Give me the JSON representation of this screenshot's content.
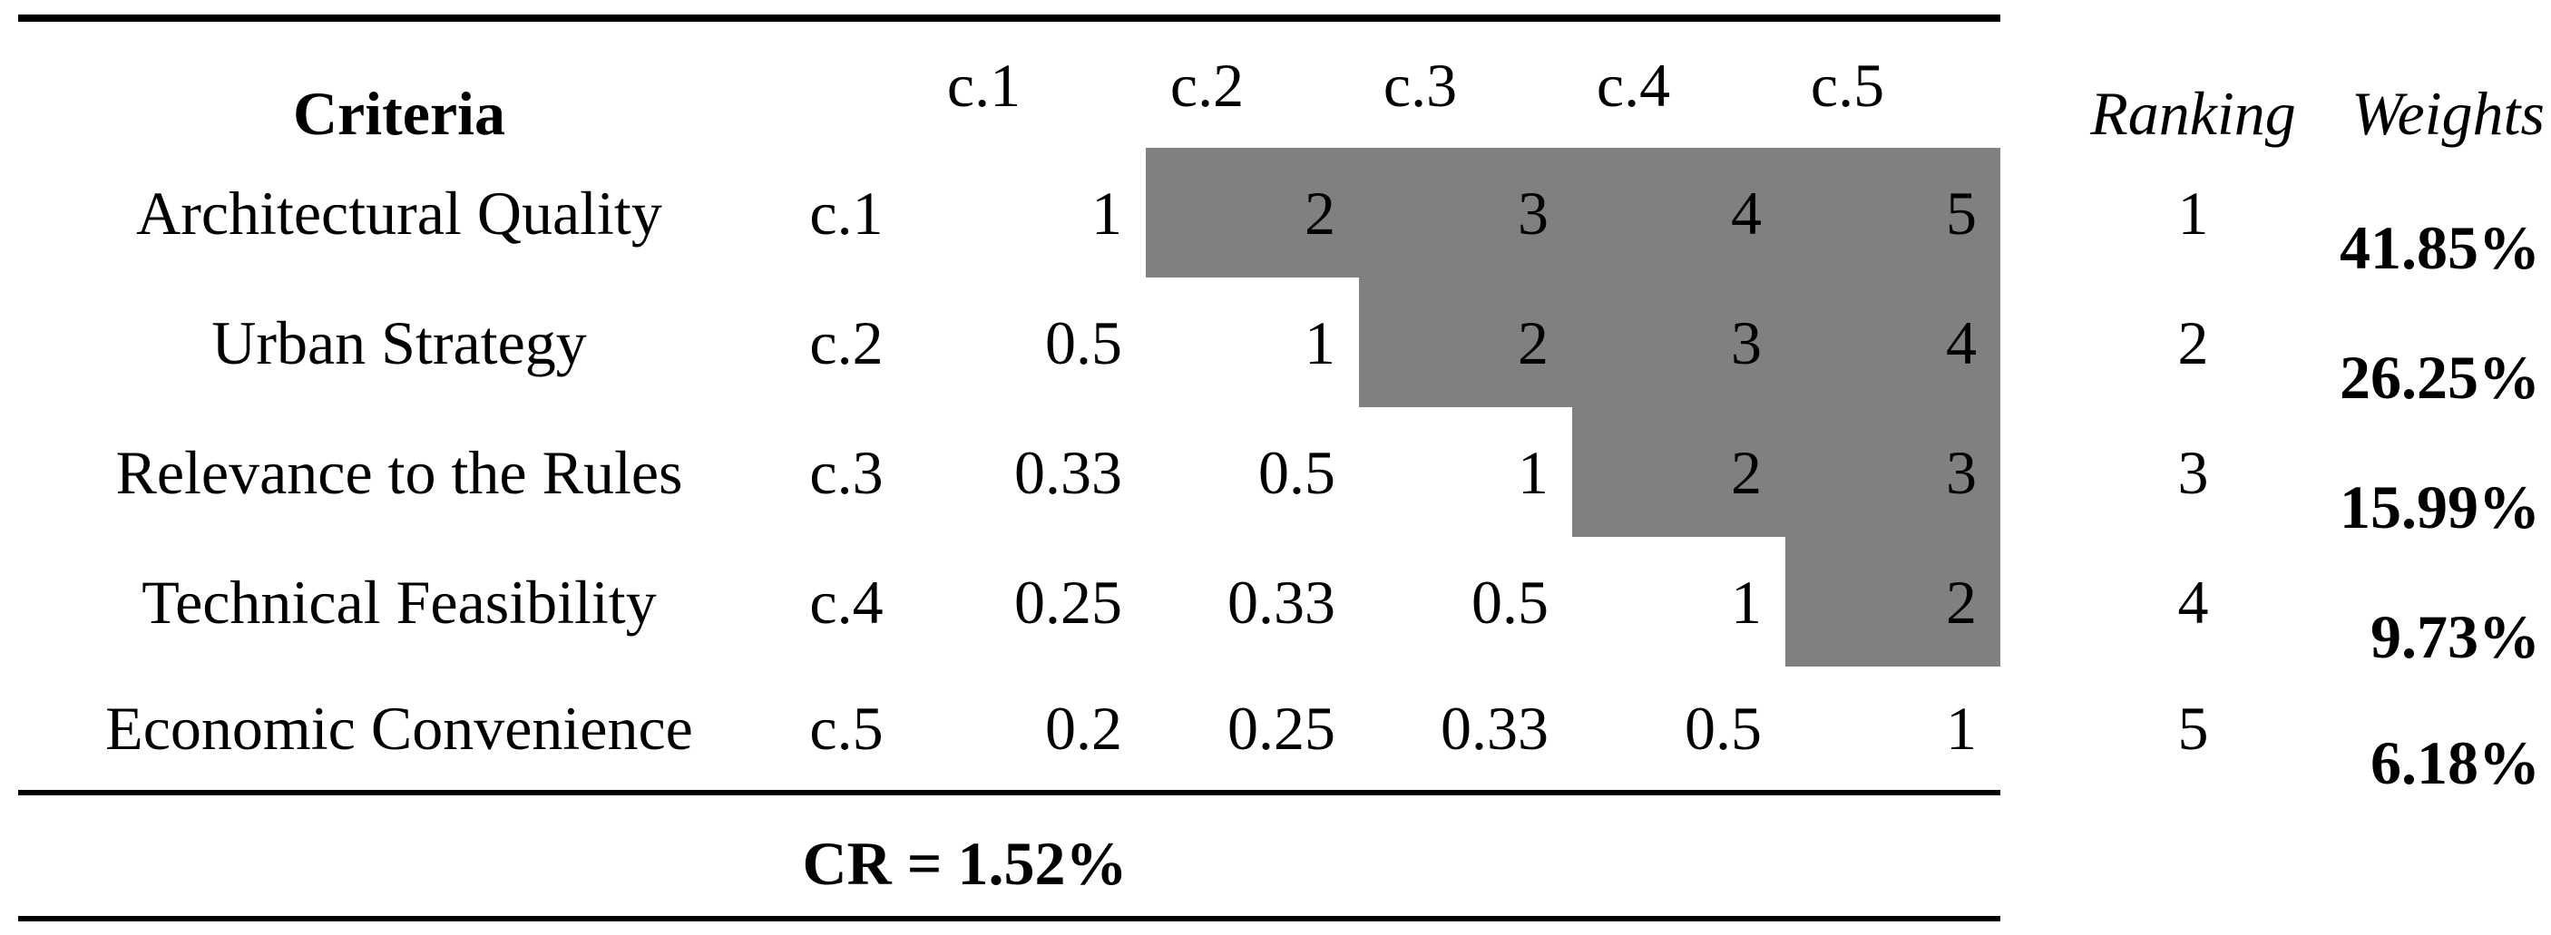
{
  "table": {
    "header": {
      "criteria": "Criteria",
      "cols": [
        "c.1",
        "c.2",
        "c.3",
        "c.4",
        "c.5"
      ],
      "ranking": "Ranking",
      "weights": "Weights"
    },
    "rows": [
      {
        "label": "Architectural Quality",
        "id": "c.1",
        "values": [
          "1",
          "2",
          "3",
          "4",
          "5"
        ],
        "ranking": "1",
        "weight": "41.85%"
      },
      {
        "label": "Urban Strategy",
        "id": "c.2",
        "values": [
          "0.5",
          "1",
          "2",
          "3",
          "4"
        ],
        "ranking": "2",
        "weight": "26.25%"
      },
      {
        "label": "Relevance to the Rules",
        "id": "c.3",
        "values": [
          "0.33",
          "0.5",
          "1",
          "2",
          "3"
        ],
        "ranking": "3",
        "weight": "15.99%"
      },
      {
        "label": "Technical Feasibility",
        "id": "c.4",
        "values": [
          "0.25",
          "0.33",
          "0.5",
          "1",
          "2"
        ],
        "ranking": "4",
        "weight": "9.73%"
      },
      {
        "label": "Economic Convenience",
        "id": "c.5",
        "values": [
          "0.2",
          "0.25",
          "0.33",
          "0.5",
          "1"
        ],
        "ranking": "5",
        "weight": "6.18%"
      }
    ],
    "consistency_ratio": "CR = 1.52%"
  },
  "colors": {
    "matrix_highlight": "#808080",
    "rule": "#000000",
    "background": "#ffffff",
    "text": "#000000"
  }
}
